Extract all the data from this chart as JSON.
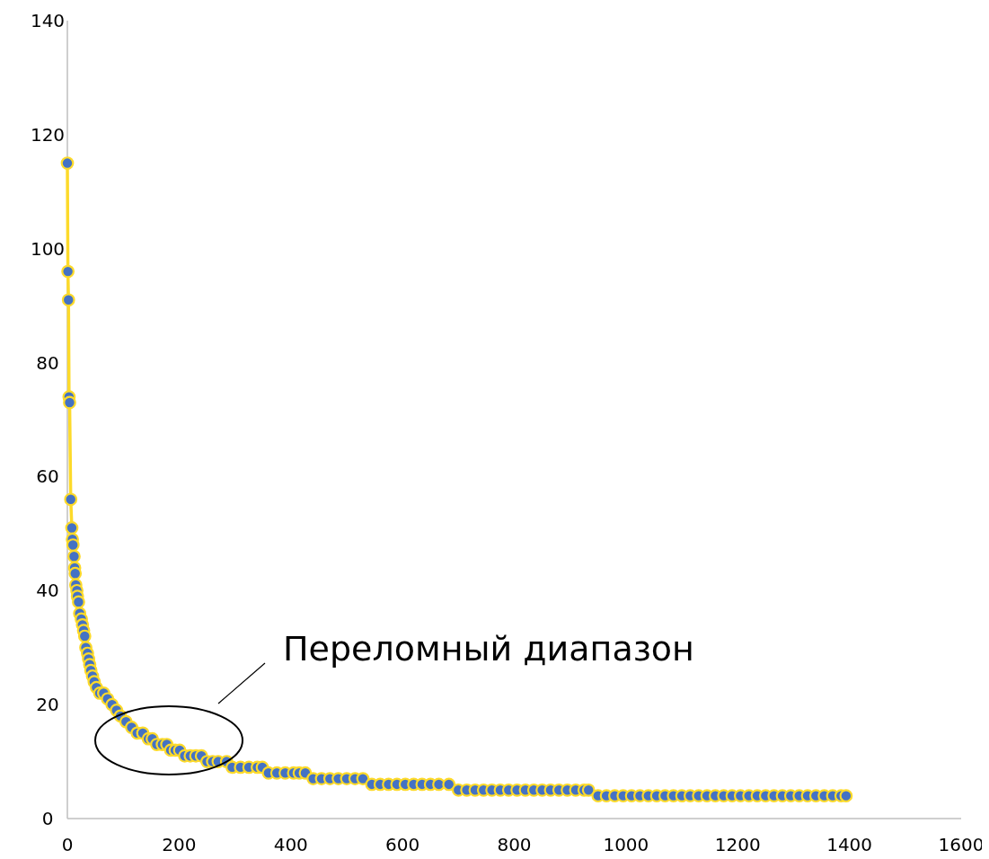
{
  "chart_data": {
    "type": "line",
    "marker": "circle",
    "grid": false,
    "xlim": [
      0,
      1600
    ],
    "xticks": [
      0,
      200,
      400,
      600,
      800,
      1000,
      1200,
      1400,
      1600
    ],
    "ylim": [
      0,
      140
    ],
    "yticks": [
      0,
      20,
      40,
      60,
      80,
      100,
      120,
      140
    ],
    "annotations": [
      "Переломный диапазон"
    ],
    "series": [
      {
        "color": "#fdda2a",
        "x": [
          0,
          1,
          2,
          3,
          4,
          6,
          8,
          9,
          10,
          12,
          13,
          14,
          15,
          17,
          18,
          20,
          22,
          25,
          27,
          29,
          31,
          33,
          36,
          38,
          40,
          42,
          45,
          48,
          52,
          58,
          65,
          72,
          80,
          88,
          95,
          105,
          115,
          125,
          135,
          145,
          152,
          160,
          170,
          178,
          185,
          193,
          201,
          210,
          220,
          230,
          240,
          250,
          260,
          270,
          285,
          295,
          310,
          325,
          340,
          349,
          360,
          375,
          390,
          405,
          415,
          426,
          440,
          455,
          470,
          485,
          500,
          515,
          529,
          545,
          560,
          575,
          590,
          605,
          620,
          635,
          650,
          665,
          683,
          700,
          715,
          730,
          745,
          760,
          775,
          790,
          805,
          820,
          835,
          850,
          865,
          880,
          895,
          910,
          925,
          933,
          950,
          965,
          980,
          995,
          1010,
          1025,
          1040,
          1055,
          1070,
          1085,
          1100,
          1115,
          1130,
          1145,
          1160,
          1175,
          1190,
          1205,
          1220,
          1235,
          1250,
          1265,
          1280,
          1295,
          1310,
          1325,
          1340,
          1355,
          1370,
          1385,
          1394
        ],
        "values": [
          115,
          96,
          91,
          74,
          73,
          56,
          51,
          49,
          48,
          46,
          44,
          43,
          41,
          40,
          39,
          38,
          36,
          35,
          34,
          33,
          32,
          30,
          29,
          28,
          27,
          26,
          25,
          24,
          23,
          22,
          22,
          21,
          20,
          19,
          18,
          17,
          16,
          15,
          15,
          14,
          14,
          13,
          13,
          13,
          12,
          12,
          12,
          11,
          11,
          11,
          11,
          10,
          10,
          10,
          10,
          9,
          9,
          9,
          9,
          9,
          8,
          8,
          8,
          8,
          8,
          8,
          7,
          7,
          7,
          7,
          7,
          7,
          7,
          6,
          6,
          6,
          6,
          6,
          6,
          6,
          6,
          6,
          6,
          5,
          5,
          5,
          5,
          5,
          5,
          5,
          5,
          5,
          5,
          5,
          5,
          5,
          5,
          5,
          5,
          5,
          4,
          4,
          4,
          4,
          4,
          4,
          4,
          4,
          4,
          4,
          4,
          4,
          4,
          4,
          4,
          4,
          4,
          4,
          4,
          4,
          4,
          4,
          4,
          4,
          4,
          4,
          4,
          4,
          4,
          4,
          4
        ]
      }
    ]
  }
}
